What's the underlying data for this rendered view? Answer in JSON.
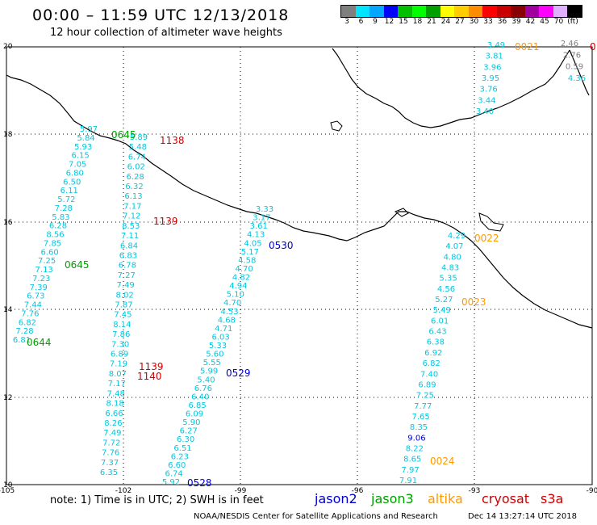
{
  "title": "00:00 – 11:59 UTC 12/13/2018",
  "subtitle": "12 hour collection of altimeter wave heights",
  "colorbar": {
    "colors": [
      "#7f7f7f",
      "#00e5ff",
      "#00a6ff",
      "#0000ff",
      "#00c000",
      "#00ff00",
      "#00a000",
      "#ffff00",
      "#ffcc00",
      "#ff8c00",
      "#ff0000",
      "#c80000",
      "#8b0000",
      "#a000a0",
      "#ff00ff",
      "#e0b0ff",
      "#000000"
    ],
    "labels": [
      "3",
      "6",
      "9",
      "12",
      "15",
      "18",
      "21",
      "24",
      "27",
      "30",
      "33",
      "36",
      "39",
      "42",
      "45",
      "70",
      "(ft)"
    ]
  },
  "axes": {
    "lon_labels": [
      "-105",
      "-102",
      "-99",
      "-96",
      "-93",
      "-90"
    ],
    "lat_labels": [
      "20",
      "18",
      "16",
      "14",
      "12",
      "10"
    ]
  },
  "colors": {
    "jason2": "#0000cc",
    "jason3": "#00a000",
    "altika": "#ff9900",
    "cryosat": "#cc0000",
    "swh_cyan": "#00c8e0",
    "swh_gray": "#808080",
    "swh_blue": "#0000cc"
  },
  "tracks": [
    {
      "name": "track-a",
      "values": [
        "5.97",
        "5.84",
        "5.93",
        "6.15",
        "7.05",
        "6.80",
        "6.50",
        "6.11",
        "5.72",
        "7.28",
        "5.83",
        "6.28",
        "8.56",
        "7.85",
        "6.60",
        "7.25",
        "7.13",
        "7.23",
        "7.39",
        "6.73",
        "7.44",
        "7.76",
        "6.82",
        "7.28",
        "6.81"
      ]
    },
    {
      "name": "track-b",
      "values": [
        "5.89",
        "5.48",
        "6.74",
        "6.02",
        "6.28",
        "6.32",
        "6.13",
        "7.17",
        "7.12",
        "8.53",
        "7.11",
        "6.84",
        "6.83",
        "6.78",
        "7.27",
        "7.49",
        "8.02",
        "7.87",
        "7.45",
        "8.14",
        "7.86",
        "7.30",
        "6.89",
        "7.19",
        "8.07",
        "7.17",
        "7.48",
        "8.18",
        "6.66",
        "8.26",
        "7.49",
        "7.72",
        "7.76",
        "7.37",
        "6.35"
      ]
    },
    {
      "name": "track-c",
      "values": [
        "3.33",
        "3.17",
        "3.61",
        "4.13",
        "4.05",
        "5.17",
        "4.58",
        "4.70",
        "4.82",
        "4.94",
        "5.10",
        "4.70",
        "4.53",
        "4.68",
        "4.71",
        "6.03",
        "5.33",
        "5.60",
        "5.55",
        "5.99",
        "5.40",
        "6.76",
        "6.40",
        "6.85",
        "6.09",
        "5.90",
        "6.27",
        "6.30",
        "6.51",
        "6.23",
        "6.60",
        "6.74",
        "5.92"
      ]
    },
    {
      "name": "track-d",
      "values": [
        "4.29",
        "4.07",
        "4.80",
        "4.83",
        "5.35",
        "4.56",
        "5.27",
        "5.49",
        "6.01",
        "6.43",
        "6.38",
        "6.92",
        "6.82",
        "7.40",
        "6.89",
        "7.25",
        "7.77",
        "7.65",
        "8.35",
        "9.06",
        "8.22",
        "8.65",
        "7.97",
        "7.91"
      ]
    },
    {
      "name": "track-e",
      "values": [
        "3.49",
        "3.81",
        "3.96",
        "3.95",
        "3.76",
        "3.44",
        "3.40"
      ]
    },
    {
      "name": "track-f",
      "values": [
        "2.46",
        "2.76",
        "0.59",
        "4.36"
      ]
    }
  ],
  "time_labels": [
    {
      "text": "0645",
      "sat": "jason3"
    },
    {
      "text": "1138",
      "sat": "cryosat"
    },
    {
      "text": "1139",
      "sat": "cryosat"
    },
    {
      "text": "0530",
      "sat": "jason2"
    },
    {
      "text": "0645",
      "sat": "jason3"
    },
    {
      "text": "0644",
      "sat": "jason3"
    },
    {
      "text": "1139",
      "sat": "cryosat"
    },
    {
      "text": "1140",
      "sat": "cryosat"
    },
    {
      "text": "0529",
      "sat": "jason2"
    },
    {
      "text": "0528",
      "sat": "jason2"
    },
    {
      "text": "0021",
      "sat": "altika"
    },
    {
      "text": "0022",
      "sat": "altika"
    },
    {
      "text": "0023",
      "sat": "altika"
    },
    {
      "text": "0024",
      "sat": "altika"
    },
    {
      "text": "0",
      "sat": "cryosat"
    }
  ],
  "note": "note: 1) Time is in UTC; 2) SWH is in feet",
  "legend": [
    {
      "label": "jason2",
      "sat": "jason2"
    },
    {
      "label": "jason3",
      "sat": "jason3"
    },
    {
      "label": "altika",
      "sat": "altika"
    },
    {
      "label": "cryosat",
      "sat": "cryosat"
    },
    {
      "label": "s3a",
      "sat": "cryosat"
    }
  ],
  "footer_left": "NOAA/NESDIS Center for Satellite Applications and Research",
  "footer_right": "Dec 14 13:27:14 UTC 2018"
}
